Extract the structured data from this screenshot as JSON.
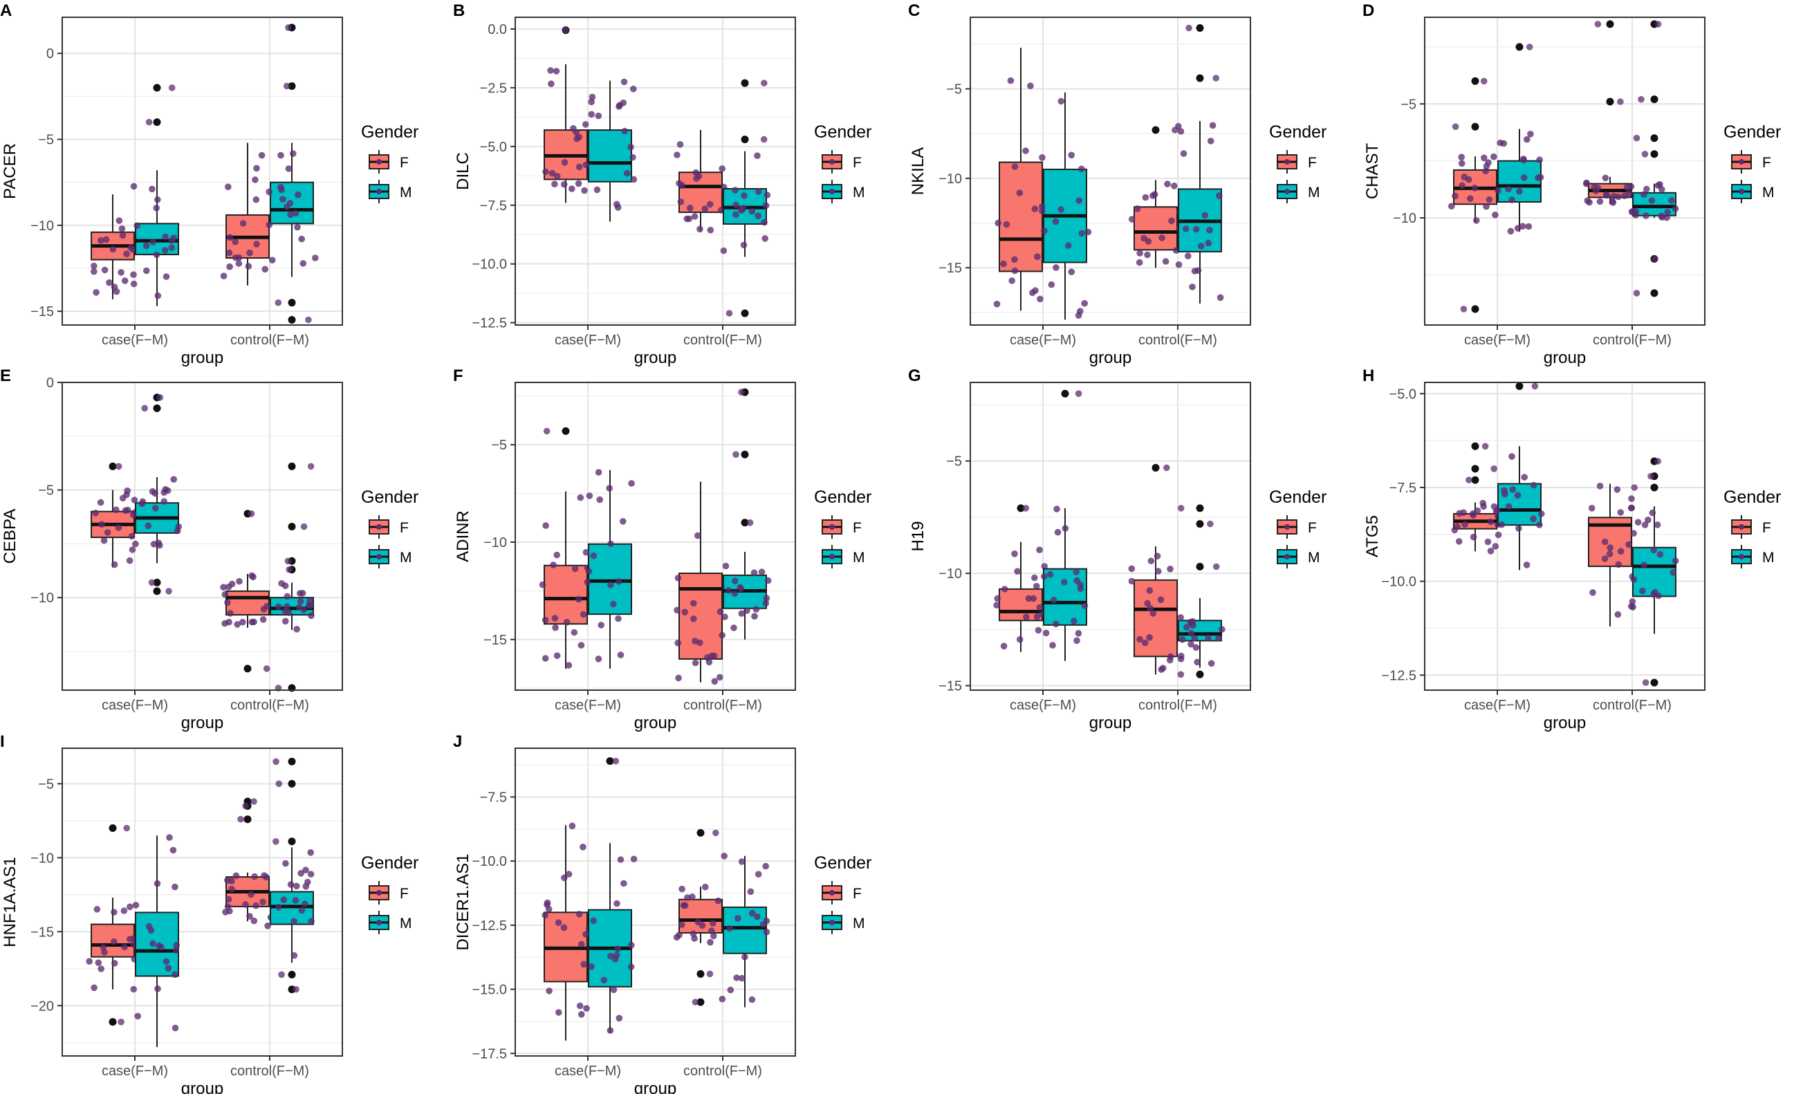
{
  "figure": {
    "group_label": "group",
    "categories": [
      "case(F−M)",
      "control(F−M)"
    ],
    "legend": {
      "title": "Gender",
      "entries": [
        {
          "label": "F",
          "color": "#F8766D"
        },
        {
          "label": "M",
          "color": "#00BFC4"
        }
      ]
    },
    "point_color": "#5B2C6F",
    "outlier_color": "#111111"
  },
  "chart_data": [
    {
      "type": "box",
      "panel": "A",
      "ylabel": "PACER",
      "ylim": [
        -15.8,
        2.1
      ],
      "yticks": [
        0,
        -5,
        -10,
        -15
      ],
      "boxes": [
        {
          "category": "case(F−M)",
          "gender": "F",
          "q1": -12.0,
          "median": -11.2,
          "q3": -10.4,
          "whisker_low": -14.3,
          "whisker_high": -8.2,
          "outliers": []
        },
        {
          "category": "case(F−M)",
          "gender": "M",
          "q1": -11.7,
          "median": -10.9,
          "q3": -9.9,
          "whisker_low": -14.7,
          "whisker_high": -6.8,
          "outliers": [
            -4.0,
            -2.0
          ]
        },
        {
          "category": "control(F−M)",
          "gender": "F",
          "q1": -11.9,
          "median": -10.7,
          "q3": -9.4,
          "whisker_low": -13.5,
          "whisker_high": -5.2,
          "outliers": []
        },
        {
          "category": "control(F−M)",
          "gender": "M",
          "q1": -9.9,
          "median": -9.1,
          "q3": -7.5,
          "whisker_low": -13.0,
          "whisker_high": -5.2,
          "outliers": [
            1.5,
            -1.9,
            -14.5,
            -15.5
          ]
        }
      ]
    },
    {
      "type": "box",
      "panel": "B",
      "ylabel": "DILC",
      "ylim": [
        -12.6,
        0.5
      ],
      "yticks": [
        0.0,
        -2.5,
        -5.0,
        -7.5,
        -10.0,
        -12.5
      ],
      "boxes": [
        {
          "category": "case(F−M)",
          "gender": "F",
          "q1": -6.4,
          "median": -5.4,
          "q3": -4.3,
          "whisker_low": -7.4,
          "whisker_high": -1.5,
          "outliers": [
            -0.05
          ]
        },
        {
          "category": "case(F−M)",
          "gender": "M",
          "q1": -6.5,
          "median": -5.7,
          "q3": -4.3,
          "whisker_low": -8.2,
          "whisker_high": -2.2,
          "outliers": []
        },
        {
          "category": "control(F−M)",
          "gender": "F",
          "q1": -7.8,
          "median": -6.7,
          "q3": -6.1,
          "whisker_low": -8.6,
          "whisker_high": -4.3,
          "outliers": []
        },
        {
          "category": "control(F−M)",
          "gender": "M",
          "q1": -8.3,
          "median": -7.6,
          "q3": -6.8,
          "whisker_low": -9.7,
          "whisker_high": -5.2,
          "outliers": [
            -2.3,
            -4.7,
            -12.1
          ]
        }
      ]
    },
    {
      "type": "box",
      "panel": "C",
      "ylabel": "NKILA",
      "ylim": [
        -18.2,
        -1.0
      ],
      "yticks": [
        -5,
        -10,
        -15
      ],
      "boxes": [
        {
          "category": "case(F−M)",
          "gender": "F",
          "q1": -15.2,
          "median": -13.4,
          "q3": -9.1,
          "whisker_low": -17.4,
          "whisker_high": -2.7,
          "outliers": []
        },
        {
          "category": "case(F−M)",
          "gender": "M",
          "q1": -14.7,
          "median": -12.1,
          "q3": -9.5,
          "whisker_low": -17.9,
          "whisker_high": -5.2,
          "outliers": []
        },
        {
          "category": "control(F−M)",
          "gender": "F",
          "q1": -14.0,
          "median": -13.0,
          "q3": -11.6,
          "whisker_low": -15.0,
          "whisker_high": -10.1,
          "outliers": [
            -7.3
          ]
        },
        {
          "category": "control(F−M)",
          "gender": "M",
          "q1": -14.1,
          "median": -12.4,
          "q3": -10.6,
          "whisker_low": -17.0,
          "whisker_high": -6.8,
          "outliers": [
            -1.6,
            -4.4
          ]
        }
      ]
    },
    {
      "type": "box",
      "panel": "D",
      "ylabel": "CHAST",
      "ylim": [
        -14.7,
        -1.2
      ],
      "yticks": [
        -5,
        -10
      ],
      "boxes": [
        {
          "category": "case(F−M)",
          "gender": "F",
          "q1": -9.4,
          "median": -8.7,
          "q3": -7.9,
          "whisker_low": -10.2,
          "whisker_high": -7.3,
          "outliers": [
            -4.0,
            -6.0,
            -14.0
          ]
        },
        {
          "category": "case(F−M)",
          "gender": "M",
          "q1": -9.3,
          "median": -8.6,
          "q3": -7.5,
          "whisker_low": -10.6,
          "whisker_high": -6.1,
          "outliers": [
            -2.5
          ]
        },
        {
          "category": "control(F−M)",
          "gender": "F",
          "q1": -9.1,
          "median": -8.8,
          "q3": -8.5,
          "whisker_low": -9.4,
          "whisker_high": -8.2,
          "outliers": [
            -4.9,
            -1.5
          ]
        },
        {
          "category": "control(F−M)",
          "gender": "M",
          "q1": -9.9,
          "median": -9.5,
          "q3": -8.9,
          "whisker_low": -10.0,
          "whisker_high": -8.5,
          "outliers": [
            -1.5,
            -4.8,
            -6.5,
            -7.2,
            -11.8,
            -13.3
          ]
        }
      ]
    },
    {
      "type": "box",
      "panel": "E",
      "ylabel": "CEBPA",
      "ylim": [
        -14.3,
        0.0
      ],
      "yticks": [
        0,
        -5,
        -10
      ],
      "boxes": [
        {
          "category": "case(F−M)",
          "gender": "F",
          "q1": -7.2,
          "median": -6.6,
          "q3": -6.0,
          "whisker_low": -8.6,
          "whisker_high": -5.0,
          "outliers": [
            -3.9
          ]
        },
        {
          "category": "case(F−M)",
          "gender": "M",
          "q1": -7.0,
          "median": -6.3,
          "q3": -5.6,
          "whisker_low": -8.4,
          "whisker_high": -4.4,
          "outliers": [
            -0.7,
            -1.2,
            -9.3,
            -9.7
          ]
        },
        {
          "category": "control(F−M)",
          "gender": "F",
          "q1": -10.8,
          "median": -10.0,
          "q3": -9.7,
          "whisker_low": -11.4,
          "whisker_high": -8.9,
          "outliers": [
            -6.1,
            -13.3
          ]
        },
        {
          "category": "control(F−M)",
          "gender": "M",
          "q1": -10.8,
          "median": -10.5,
          "q3": -10.0,
          "whisker_low": -11.5,
          "whisker_high": -9.3,
          "outliers": [
            -3.9,
            -6.7,
            -8.3,
            -8.7,
            -14.2
          ]
        }
      ]
    },
    {
      "type": "box",
      "panel": "F",
      "ylabel": "ADINR",
      "ylim": [
        -17.6,
        -1.8
      ],
      "yticks": [
        -5,
        -10,
        -15
      ],
      "boxes": [
        {
          "category": "case(F−M)",
          "gender": "F",
          "q1": -14.2,
          "median": -12.9,
          "q3": -11.2,
          "whisker_low": -16.5,
          "whisker_high": -7.4,
          "outliers": [
            -4.3
          ]
        },
        {
          "category": "case(F−M)",
          "gender": "M",
          "q1": -13.7,
          "median": -12.0,
          "q3": -10.1,
          "whisker_low": -16.5,
          "whisker_high": -6.3,
          "outliers": []
        },
        {
          "category": "control(F−M)",
          "gender": "F",
          "q1": -16.0,
          "median": -12.4,
          "q3": -11.6,
          "whisker_low": -17.2,
          "whisker_high": -6.9,
          "outliers": []
        },
        {
          "category": "control(F−M)",
          "gender": "M",
          "q1": -13.4,
          "median": -12.5,
          "q3": -11.7,
          "whisker_low": -15.0,
          "whisker_high": -10.5,
          "outliers": [
            -2.3,
            -5.5,
            -9.0
          ]
        }
      ]
    },
    {
      "type": "box",
      "panel": "G",
      "ylabel": "H19",
      "ylim": [
        -15.2,
        -1.5
      ],
      "yticks": [
        -5,
        -10,
        -15
      ],
      "boxes": [
        {
          "category": "case(F−M)",
          "gender": "F",
          "q1": -12.1,
          "median": -11.7,
          "q3": -10.7,
          "whisker_low": -13.5,
          "whisker_high": -8.6,
          "outliers": [
            -7.1
          ]
        },
        {
          "category": "case(F−M)",
          "gender": "M",
          "q1": -12.3,
          "median": -11.3,
          "q3": -9.8,
          "whisker_low": -13.9,
          "whisker_high": -7.1,
          "outliers": [
            -2.0
          ]
        },
        {
          "category": "control(F−M)",
          "gender": "F",
          "q1": -13.7,
          "median": -11.6,
          "q3": -10.3,
          "whisker_low": -14.5,
          "whisker_high": -8.8,
          "outliers": [
            -5.3
          ]
        },
        {
          "category": "control(F−M)",
          "gender": "M",
          "q1": -13.0,
          "median": -12.7,
          "q3": -12.1,
          "whisker_low": -14.2,
          "whisker_high": -11.1,
          "outliers": [
            -7.1,
            -7.8,
            -9.7,
            -14.5
          ]
        }
      ]
    },
    {
      "type": "box",
      "panel": "H",
      "ylabel": "ATG5",
      "ylim": [
        -12.9,
        -4.7
      ],
      "yticks": [
        -5.0,
        -7.5,
        -10.0,
        -12.5
      ],
      "boxes": [
        {
          "category": "case(F−M)",
          "gender": "F",
          "q1": -8.6,
          "median": -8.4,
          "q3": -8.2,
          "whisker_low": -9.2,
          "whisker_high": -7.9,
          "outliers": [
            -6.4,
            -7.0,
            -7.3
          ]
        },
        {
          "category": "case(F−M)",
          "gender": "M",
          "q1": -8.5,
          "median": -8.1,
          "q3": -7.4,
          "whisker_low": -9.7,
          "whisker_high": -6.4,
          "outliers": [
            -4.8
          ]
        },
        {
          "category": "control(F−M)",
          "gender": "F",
          "q1": -9.6,
          "median": -8.5,
          "q3": -8.3,
          "whisker_low": -11.2,
          "whisker_high": -7.4,
          "outliers": []
        },
        {
          "category": "control(F−M)",
          "gender": "M",
          "q1": -10.4,
          "median": -9.6,
          "q3": -9.1,
          "whisker_low": -11.4,
          "whisker_high": -8.0,
          "outliers": [
            -6.8,
            -7.2,
            -7.5,
            -12.7
          ]
        }
      ]
    },
    {
      "type": "box",
      "panel": "I",
      "ylabel": "HNF1A.AS1",
      "ylim": [
        -23.4,
        -2.6
      ],
      "yticks": [
        -5,
        -10,
        -15,
        -20
      ],
      "boxes": [
        {
          "category": "case(F−M)",
          "gender": "F",
          "q1": -16.7,
          "median": -15.9,
          "q3": -14.5,
          "whisker_low": -18.9,
          "whisker_high": -12.7,
          "outliers": [
            -8.0,
            -21.1
          ]
        },
        {
          "category": "case(F−M)",
          "gender": "M",
          "q1": -18.0,
          "median": -16.3,
          "q3": -13.7,
          "whisker_low": -22.8,
          "whisker_high": -8.5,
          "outliers": []
        },
        {
          "category": "control(F−M)",
          "gender": "F",
          "q1": -13.3,
          "median": -12.3,
          "q3": -11.3,
          "whisker_low": -14.3,
          "whisker_high": -11.0,
          "outliers": [
            -6.2,
            -6.5,
            -7.4
          ]
        },
        {
          "category": "control(F−M)",
          "gender": "M",
          "q1": -14.5,
          "median": -13.3,
          "q3": -12.3,
          "whisker_low": -17.1,
          "whisker_high": -9.3,
          "outliers": [
            -3.5,
            -5.0,
            -8.9,
            -17.9,
            -18.9
          ]
        }
      ]
    },
    {
      "type": "box",
      "panel": "J",
      "ylabel": "DICER1.AS1",
      "ylim": [
        -17.6,
        -5.6
      ],
      "yticks": [
        -7.5,
        -10.0,
        -12.5,
        -15.0,
        -17.5
      ],
      "boxes": [
        {
          "category": "case(F−M)",
          "gender": "F",
          "q1": -14.7,
          "median": -13.4,
          "q3": -12.0,
          "whisker_low": -17.0,
          "whisker_high": -8.6,
          "outliers": []
        },
        {
          "category": "case(F−M)",
          "gender": "M",
          "q1": -14.9,
          "median": -13.4,
          "q3": -11.9,
          "whisker_low": -16.7,
          "whisker_high": -9.3,
          "outliers": [
            -6.1
          ]
        },
        {
          "category": "control(F−M)",
          "gender": "F",
          "q1": -12.8,
          "median": -12.3,
          "q3": -11.5,
          "whisker_low": -13.2,
          "whisker_high": -11.0,
          "outliers": [
            -8.9,
            -14.4,
            -15.5
          ]
        },
        {
          "category": "control(F−M)",
          "gender": "M",
          "q1": -13.6,
          "median": -12.6,
          "q3": -11.8,
          "whisker_low": -15.7,
          "whisker_high": -9.8,
          "outliers": []
        }
      ]
    }
  ]
}
